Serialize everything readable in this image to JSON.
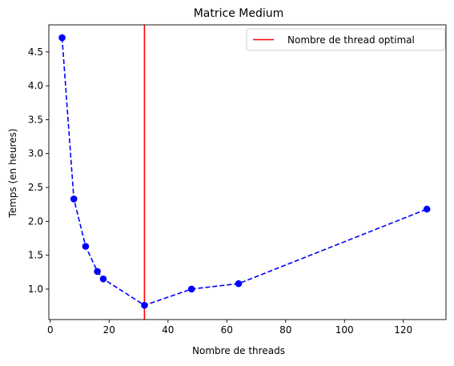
{
  "chart_data": {
    "type": "line",
    "title": "Matrice Medium",
    "xlabel": "Nombre de threads",
    "ylabel": "Temps (en heures)",
    "xlim": [
      -0.5,
      134.5
    ],
    "ylim": [
      0.55,
      4.9
    ],
    "x_ticks": [
      0,
      20,
      40,
      60,
      80,
      100,
      120
    ],
    "y_ticks": [
      1.0,
      1.5,
      2.0,
      2.5,
      3.0,
      3.5,
      4.0,
      4.5
    ],
    "x_tick_labels": [
      "0",
      "20",
      "40",
      "60",
      "80",
      "100",
      "120"
    ],
    "y_tick_labels": [
      "1.0",
      "1.5",
      "2.0",
      "2.5",
      "3.0",
      "3.5",
      "4.0",
      "4.5"
    ],
    "grid": false,
    "legend_position": "top-right",
    "series": [
      {
        "style": "dashed line with circle markers",
        "color": "#0000ff",
        "x": [
          4,
          8,
          12,
          16,
          18,
          32,
          48,
          64,
          128
        ],
        "y": [
          4.71,
          2.33,
          1.63,
          1.26,
          1.15,
          0.76,
          1.0,
          1.08,
          2.18
        ]
      }
    ],
    "vertical_lines": [
      {
        "name": "Nombre de thread optimal",
        "x": 32,
        "color": "#ff0000"
      }
    ]
  }
}
